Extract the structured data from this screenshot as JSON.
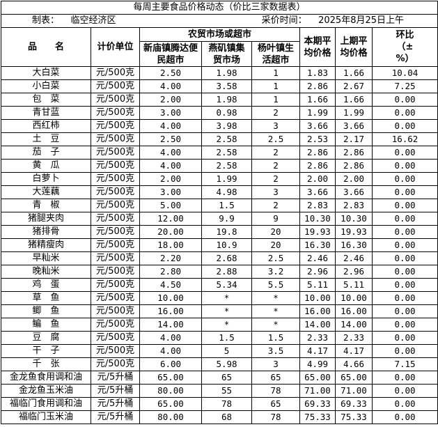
{
  "title": "每周主要食品价格动态（价比三家数据表）",
  "meta": {
    "maker_label": "制表：",
    "maker": "临空经济区",
    "time_label": "采价时间：",
    "time": "2025年8月25日上午"
  },
  "headers": {
    "name": "品　　名",
    "unit": "计价单位",
    "market_group": "农贸市场或超市",
    "markets": [
      "新庙镇腾达便民超市",
      "燕矶镇集贸市场",
      "杨叶镇生活超市"
    ],
    "current_avg": "本期平均价格",
    "previous_avg": "上期平均价格",
    "change": "环比（±%）"
  },
  "rows": [
    {
      "name": "大白菜",
      "unit": "元/500克",
      "m1": "2.50",
      "m2": "1.98",
      "m3": "1",
      "cur": "1.83",
      "prev": "1.66",
      "chg": "10.04"
    },
    {
      "name": "小白菜",
      "unit": "元/500克",
      "m1": "4.00",
      "m2": "3.58",
      "m3": "1",
      "cur": "2.86",
      "prev": "2.67",
      "chg": "7.25"
    },
    {
      "name": "包　菜",
      "unit": "元/500克",
      "m1": "2.00",
      "m2": "1.98",
      "m3": "1",
      "cur": "1.66",
      "prev": "1.66",
      "chg": "0.00"
    },
    {
      "name": "青甘蓝",
      "unit": "元/500克",
      "m1": "3.00",
      "m2": "0.98",
      "m3": "2",
      "cur": "1.99",
      "prev": "1.99",
      "chg": "0.00"
    },
    {
      "name": "西红柿",
      "unit": "元/500克",
      "m1": "4.00",
      "m2": "3.98",
      "m3": "3",
      "cur": "3.66",
      "prev": "3.66",
      "chg": "0.00"
    },
    {
      "name": "土　豆",
      "unit": "元/500克",
      "m1": "2.50",
      "m2": "2.58",
      "m3": "2.5",
      "cur": "2.53",
      "prev": "2.17",
      "chg": "16.62"
    },
    {
      "name": "茄　子",
      "unit": "元/500克",
      "m1": "4.00",
      "m2": "2.58",
      "m3": "2",
      "cur": "2.86",
      "prev": "2.86",
      "chg": "0.00"
    },
    {
      "name": "黄　瓜",
      "unit": "元/500克",
      "m1": "4.00",
      "m2": "2.58",
      "m3": "2",
      "cur": "2.86",
      "prev": "2.86",
      "chg": "0.00"
    },
    {
      "name": "白萝卜",
      "unit": "元/500克",
      "m1": "2.00",
      "m2": "1.99",
      "m3": "2",
      "cur": "2.00",
      "prev": "2.00",
      "chg": "0.00"
    },
    {
      "name": "大莲藕",
      "unit": "元/500克",
      "m1": "3.00",
      "m2": "4.98",
      "m3": "3",
      "cur": "3.66",
      "prev": "3.66",
      "chg": "0.00"
    },
    {
      "name": "青　椒",
      "unit": "元/500克",
      "m1": "5.00",
      "m2": "1.5",
      "m3": "2",
      "cur": "2.83",
      "prev": "2.83",
      "chg": "0.00"
    },
    {
      "name": "猪腿夹肉",
      "unit": "元/500克",
      "m1": "12.00",
      "m2": "9.9",
      "m3": "9",
      "cur": "10.30",
      "prev": "10.30",
      "chg": "0.00"
    },
    {
      "name": "猪排骨",
      "unit": "元/500克",
      "m1": "20.00",
      "m2": "19.8",
      "m3": "20",
      "cur": "19.93",
      "prev": "19.93",
      "chg": "0.00"
    },
    {
      "name": "猪精瘦肉",
      "unit": "元/500克",
      "m1": "18.00",
      "m2": "10.9",
      "m3": "20",
      "cur": "16.30",
      "prev": "16.30",
      "chg": "0.00"
    },
    {
      "name": "早籼米",
      "unit": "元/500克",
      "m1": "2.20",
      "m2": "2.68",
      "m3": "2.5",
      "cur": "2.46",
      "prev": "2.46",
      "chg": "0.00"
    },
    {
      "name": "晚籼米",
      "unit": "元/500克",
      "m1": "2.80",
      "m2": "2.88",
      "m3": "3.2",
      "cur": "2.96",
      "prev": "2.96",
      "chg": "0.00"
    },
    {
      "name": "鸡　蛋",
      "unit": "元/500克",
      "m1": "4.50",
      "m2": "5.34",
      "m3": "5.5",
      "cur": "5.11",
      "prev": "5.11",
      "chg": "0.00"
    },
    {
      "name": "草　鱼",
      "unit": "元/500克",
      "m1": "10.00",
      "m2": "*",
      "m3": "*",
      "cur": "10.00",
      "prev": "10.00",
      "chg": "0.00"
    },
    {
      "name": "鲫　鱼",
      "unit": "元/500克",
      "m1": "16.00",
      "m2": "*",
      "m3": "*",
      "cur": "16.00",
      "prev": "16.00",
      "chg": "0.00"
    },
    {
      "name": "鳊　鱼",
      "unit": "元/500克",
      "m1": "14.00",
      "m2": "*",
      "m3": "*",
      "cur": "14.00",
      "prev": "14.00",
      "chg": "0.00"
    },
    {
      "name": "豆　腐",
      "unit": "元/500克",
      "m1": "4.00",
      "m2": "1.5",
      "m3": "1.5",
      "cur": "2.33",
      "prev": "2.33",
      "chg": "0.00"
    },
    {
      "name": "干　子",
      "unit": "元/500克",
      "m1": "4.00",
      "m2": "5",
      "m3": "3.5",
      "cur": "4.17",
      "prev": "4.17",
      "chg": "0.00"
    },
    {
      "name": "千　张",
      "unit": "元/500克",
      "m1": "6.00",
      "m2": "5.98",
      "m3": "3",
      "cur": "4.99",
      "prev": "4.66",
      "chg": "7.15"
    },
    {
      "name": "金龙鱼食用调和油",
      "unit": "元/5升桶",
      "m1": "65.00",
      "m2": "65",
      "m3": "65",
      "cur": "65.00",
      "prev": "65.00",
      "chg": "0.00"
    },
    {
      "name": "金龙鱼玉米油",
      "unit": "元/5升桶",
      "m1": "80.00",
      "m2": "55",
      "m3": "78",
      "cur": "71.00",
      "prev": "71.00",
      "chg": "0.00"
    },
    {
      "name": "福临门食用调和油",
      "unit": "元/5升桶",
      "m1": "65.00",
      "m2": "78",
      "m3": "65",
      "cur": "69.33",
      "prev": "69.33",
      "chg": "0.00"
    },
    {
      "name": "福临门玉米油",
      "unit": "元/5升桶",
      "m1": "80.00",
      "m2": "68",
      "m3": "78",
      "cur": "75.33",
      "prev": "75.33",
      "chg": "0.00"
    }
  ]
}
